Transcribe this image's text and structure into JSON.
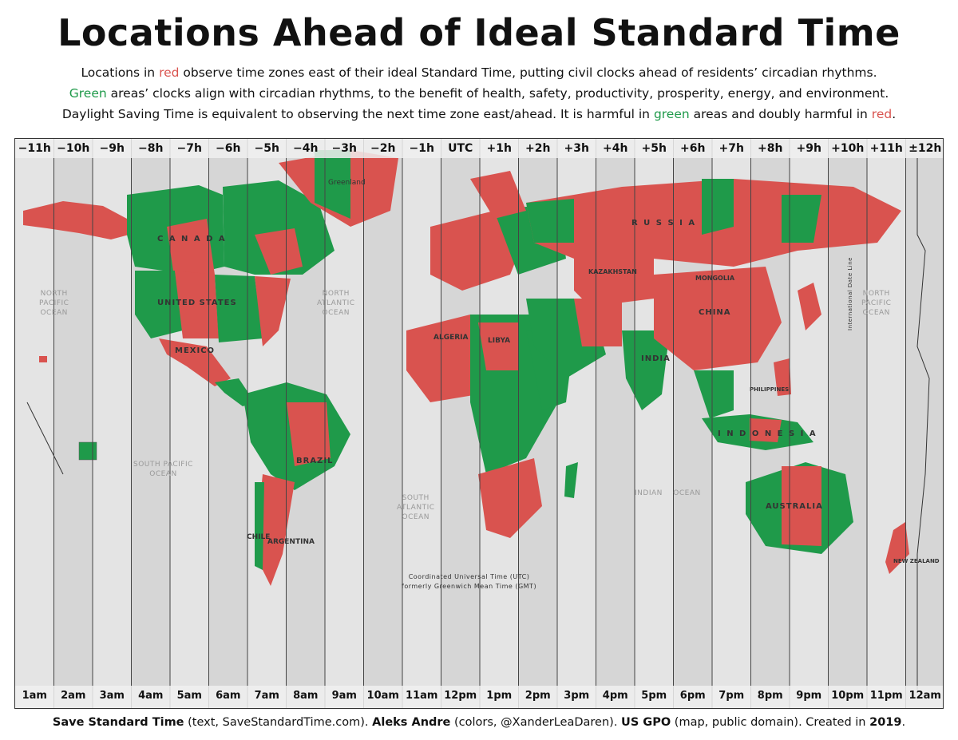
{
  "title": "Locations Ahead of Ideal Standard Time",
  "subtitle": {
    "line1": {
      "a": "Locations in ",
      "b": "red",
      "c": " observe time zones east of their ideal Standard Time, putting civil clocks ahead of residents’ circadian rhythms."
    },
    "line2": {
      "a": "Green",
      "b": " areas’ clocks align with circadian rhythms, to the benefit of health, safety, productivity, prosperity, energy, and environment."
    },
    "line3": {
      "a": "Daylight Saving Time is equivalent to observing the next time zone east/ahead. It is harmful in ",
      "b": "green",
      "c": " areas and doubly harmful in ",
      "d": "red",
      "e": "."
    }
  },
  "colors": {
    "red": "#d9534f",
    "green": "#1f9a4a",
    "ocean": "#e3e3e3"
  },
  "zones_top": [
    "−11h",
    "−10h",
    "−9h",
    "−8h",
    "−7h",
    "−6h",
    "−5h",
    "−4h",
    "−3h",
    "−2h",
    "−1h",
    "UTC",
    "+1h",
    "+2h",
    "+3h",
    "+4h",
    "+5h",
    "+6h",
    "+7h",
    "+8h",
    "+9h",
    "+10h",
    "+11h",
    "±12h"
  ],
  "zones_bottom": [
    "1am",
    "2am",
    "3am",
    "4am",
    "5am",
    "6am",
    "7am",
    "8am",
    "9am",
    "10am",
    "11am",
    "12pm",
    "1pm",
    "2pm",
    "3pm",
    "4pm",
    "5pm",
    "6pm",
    "7pm",
    "8pm",
    "9pm",
    "10pm",
    "11pm",
    "12am"
  ],
  "labels": {
    "canada": "C A N A D A",
    "us": "UNITED STATES",
    "mexico": "MEXICO",
    "brazil": "BRAZIL",
    "argentina": "ARGENTINA",
    "chile": "CHILE",
    "russia": "R U S S I A",
    "china": "CHINA",
    "india": "INDIA",
    "mongolia": "MONGOLIA",
    "kazakhstan": "KAZAKHSTAN",
    "australia": "AUSTRALIA",
    "indonesia": "I N D O N E S I A",
    "algeria": "ALGERIA",
    "libya": "LIBYA",
    "greenland": "Greenland",
    "new_zealand": "NEW ZEALAND",
    "philippines": "PHILIPPINES",
    "north_pacific": "NORTH\nPACIFIC\nOCEAN",
    "north_pacific_east": "NORTH\nPACIFIC\nOCEAN",
    "north_atlantic": "NORTH\nATLANTIC\nOCEAN",
    "south_pacific": "SOUTH PACIFIC\nOCEAN",
    "south_atlantic": "SOUTH\nATLANTIC\nOCEAN",
    "indian_ocean": "INDIAN    OCEAN",
    "utc_note": "Coordinated Universal Time (UTC)\nformerly Greenwich Mean Time (GMT)",
    "idl": "International Date Line"
  },
  "footer": {
    "a": "Save Standard Time",
    "b": " (text, SaveStandardTime.com). ",
    "c": "Aleks Andre",
    "d": " (colors, @XanderLeaDaren). ",
    "e": "US GPO",
    "f": " (map, public domain). Created in ",
    "g": "2019",
    "h": "."
  }
}
